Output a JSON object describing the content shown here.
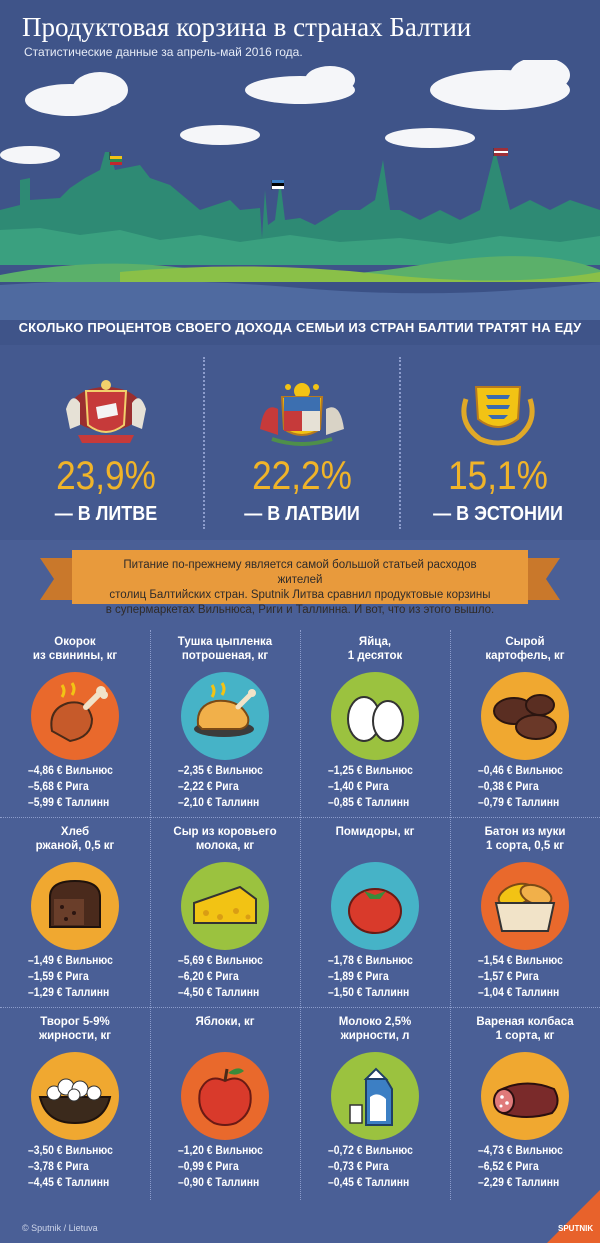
{
  "header": {
    "title": "Продуктовая корзина в странах Балтии",
    "subtitle": "Статистические данные за апрель-май 2016 года.",
    "question": "СКОЛЬКО ПРОЦЕНТОВ СВОЕГО ДОХОДА СЕМЬИ ИЗ СТРАН БАЛТИИ ТРАТЯТ НА ЕДУ"
  },
  "countries": [
    {
      "percent": "23,9%",
      "label": "— В ЛИТВЕ",
      "coat_icon": "lithuania-coat-of-arms-icon"
    },
    {
      "percent": "22,2%",
      "label": "— В ЛАТВИИ",
      "coat_icon": "latvia-coat-of-arms-icon"
    },
    {
      "percent": "15,1%",
      "label": "— В ЭСТОНИИ",
      "coat_icon": "estonia-coat-of-arms-icon"
    }
  ],
  "note": {
    "line1": "Питание по-прежнему является самой большой статьей расходов жителей",
    "line2": "столиц Балтийских стран. Sputnik Литва сравнил продуктовые корзины",
    "line3": "в супермаркетах Вильнюса, Риги и Таллинна. И вот, что из этого вышло."
  },
  "products": [
    {
      "title1": "Окорок",
      "title2": "из свинины, кг",
      "icon": "ham-icon",
      "prices": [
        "–4,86 € Вильнюс",
        "–5,68 € Рига",
        "–5,99 € Таллинн"
      ]
    },
    {
      "title1": "Тушка цыпленка",
      "title2": "потрошеная, кг",
      "icon": "chicken-icon",
      "prices": [
        "–2,35 € Вильнюс",
        "–2,22 € Рига",
        "–2,10 € Таллинн"
      ]
    },
    {
      "title1": "Яйца,",
      "title2": "1 десяток",
      "icon": "eggs-icon",
      "prices": [
        "–1,25 € Вильнюс",
        "–1,40 € Рига",
        "–0,85 € Таллинн"
      ]
    },
    {
      "title1": "Сырой",
      "title2": "картофель, кг",
      "icon": "potatoes-icon",
      "prices": [
        "–0,46 € Вильнюс",
        "–0,38 € Рига",
        "–0,79 € Таллинн"
      ]
    },
    {
      "title1": "Хлеб",
      "title2": "ржаной, 0,5 кг",
      "icon": "rye-bread-icon",
      "prices": [
        "–1,49 € Вильнюс",
        "–1,59 € Рига",
        "–1,29 € Таллинн"
      ]
    },
    {
      "title1": "Сыр из коровьего",
      "title2": "молока, кг",
      "icon": "cheese-icon",
      "prices": [
        "–5,69 € Вильнюс",
        "–6,20 € Рига",
        "–4,50 € Таллинн"
      ]
    },
    {
      "title1": "Помидоры, кг",
      "title2": "",
      "icon": "tomato-icon",
      "prices": [
        "–1,78 € Вильнюс",
        "–1,89 € Рига",
        "–1,50 € Таллинн"
      ]
    },
    {
      "title1": "Батон из муки",
      "title2": "1 сорта, 0,5 кг",
      "icon": "bread-basket-icon",
      "prices": [
        "–1,54 € Вильнюс",
        "–1,57 € Рига",
        "–1,04 € Таллинн"
      ]
    },
    {
      "title1": "Творог 5-9%",
      "title2": "жирности, кг",
      "icon": "cottage-cheese-icon",
      "prices": [
        "–3,50 € Вильнюс",
        "–3,78 € Рига",
        "–4,45 € Таллинн"
      ]
    },
    {
      "title1": "Яблоки, кг",
      "title2": "",
      "icon": "apple-icon",
      "prices": [
        "–1,20 € Вильнюс",
        "–0,99 € Рига",
        "–0,90 € Таллинн"
      ]
    },
    {
      "title1": "Молоко 2,5%",
      "title2": "жирности, л",
      "icon": "milk-icon",
      "prices": [
        "–0,72 € Вильнюс",
        "–0,73 € Рига",
        "–0,45 € Таллинн"
      ]
    },
    {
      "title1": "Вареная колбаса",
      "title2": "1 сорта, кг",
      "icon": "sausage-icon",
      "prices": [
        "–4,73 € Вильнюс",
        "–6,52 € Рига",
        "–2,29 € Таллинн"
      ]
    }
  ],
  "footer": {
    "credit": "© Sputnik / Lietuva",
    "badge": "SPUTNIK"
  },
  "colors": {
    "background": "#4a5f96",
    "accent": "#f0b429",
    "ribbon": "#e89a3c",
    "icon_circle": "#f0a830"
  }
}
